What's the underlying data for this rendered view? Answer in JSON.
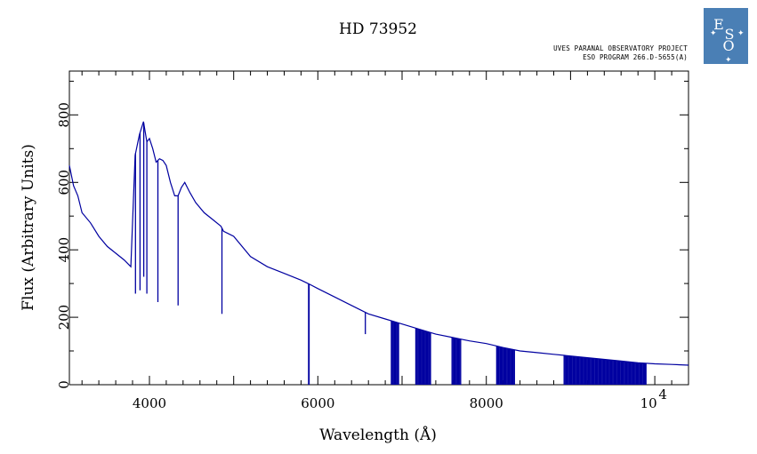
{
  "chart_data": {
    "type": "line",
    "title": "HD 73952",
    "annotations": [
      "UVES PARANAL OBSERVATORY PROJECT",
      "ESO PROGRAM 266.D-5655(A)"
    ],
    "xlabel": "Wavelength (Å)",
    "ylabel": "Flux (Arbitrary Units)",
    "xlim": [
      3050,
      10400
    ],
    "ylim": [
      0,
      930
    ],
    "x_ticks": [
      {
        "value": 4000,
        "label": "4000"
      },
      {
        "value": 6000,
        "label": "6000"
      },
      {
        "value": 8000,
        "label": "8000"
      }
    ],
    "x_tick_special": {
      "value": 10000,
      "base": "10",
      "exponent": "4"
    },
    "y_ticks": [
      {
        "value": 0,
        "label": "0"
      },
      {
        "value": 200,
        "label": "200"
      },
      {
        "value": 400,
        "label": "400"
      },
      {
        "value": 600,
        "label": "600"
      },
      {
        "value": 800,
        "label": "800"
      }
    ],
    "grid": false,
    "series": [
      {
        "color": "#0000a0",
        "x": [
          3050,
          3100,
          3150,
          3200,
          3300,
          3400,
          3500,
          3600,
          3700,
          3780,
          3830,
          3880,
          3930,
          3970,
          4000,
          4040,
          4080,
          4120,
          4160,
          4200,
          4250,
          4300,
          4340,
          4380,
          4420,
          4480,
          4550,
          4650,
          4750,
          4850,
          4880,
          4920,
          5000,
          5200,
          5400,
          5600,
          5800,
          5900,
          6000,
          6200,
          6400,
          6600,
          6800,
          7000,
          7200,
          7400,
          7600,
          7800,
          8000,
          8200,
          8400,
          8600,
          8800,
          9000,
          9200,
          9400,
          9600,
          9800,
          10000,
          10200,
          10400
        ],
        "y": [
          650,
          590,
          560,
          510,
          480,
          440,
          410,
          390,
          370,
          350,
          680,
          740,
          780,
          720,
          730,
          700,
          660,
          670,
          665,
          650,
          600,
          560,
          560,
          585,
          600,
          570,
          540,
          510,
          490,
          470,
          455,
          450,
          440,
          380,
          350,
          330,
          310,
          298,
          285,
          260,
          235,
          210,
          195,
          180,
          165,
          150,
          140,
          130,
          122,
          110,
          100,
          95,
          90,
          85,
          80,
          75,
          70,
          65,
          62,
          60,
          58
        ]
      }
    ],
    "absorption_lines": [
      {
        "x": 3835,
        "y": 270
      },
      {
        "x": 3889,
        "y": 280
      },
      {
        "x": 3933,
        "y": 320
      },
      {
        "x": 3970,
        "y": 270
      },
      {
        "x": 4101,
        "y": 245
      },
      {
        "x": 4340,
        "y": 235
      },
      {
        "x": 4861,
        "y": 210
      },
      {
        "x": 5890,
        "y": 0
      },
      {
        "x": 5896,
        "y": 0
      },
      {
        "x": 6563,
        "y": 150
      }
    ],
    "telluric_bands": [
      {
        "start": 6870,
        "end": 6960,
        "min": 0
      },
      {
        "start": 7160,
        "end": 7340,
        "min": 0
      },
      {
        "start": 7590,
        "end": 7700,
        "min": 0
      },
      {
        "start": 8120,
        "end": 8340,
        "min": 0
      },
      {
        "start": 8920,
        "end": 9900,
        "min": 0
      }
    ]
  },
  "logo": {
    "name": "ESO",
    "bg_color": "#4a7fb5",
    "text": "ESO"
  }
}
